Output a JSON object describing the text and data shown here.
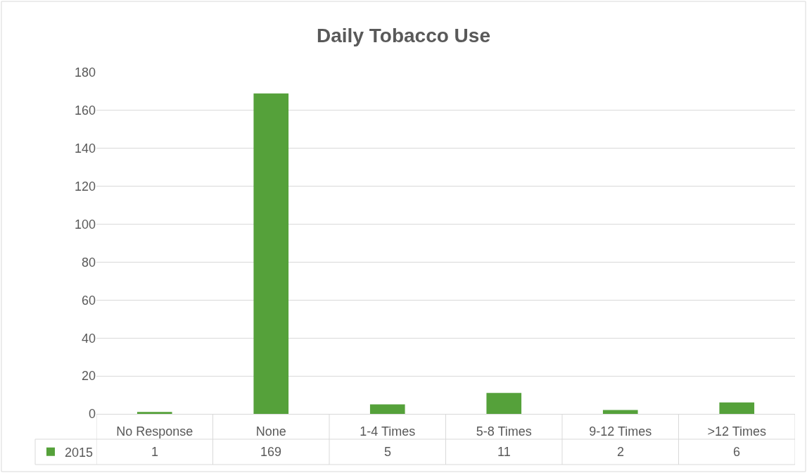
{
  "chart_data": {
    "type": "bar",
    "title": "Daily Tobacco Use",
    "categories": [
      "No Response",
      "None",
      "1-4 Times",
      "5-8 Times",
      "9-12 Times",
      ">12 Times"
    ],
    "series": [
      {
        "name": "2015",
        "color": "#55a13a",
        "values": [
          1,
          169,
          5,
          11,
          2,
          6
        ]
      }
    ],
    "ylim": [
      0,
      180
    ],
    "yticks": [
      0,
      20,
      40,
      60,
      80,
      100,
      120,
      140,
      160,
      180
    ],
    "grid": "y",
    "legend": "bottom",
    "data_labels": true
  }
}
